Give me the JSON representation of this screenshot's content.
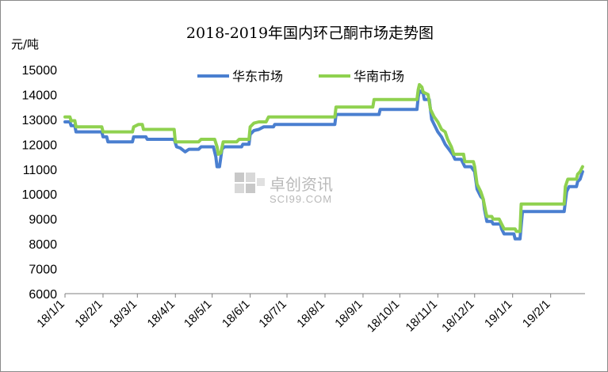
{
  "chart_data": {
    "type": "line",
    "title": "2018-2019年国内环己酮市场走势图",
    "ylabel": "元/吨",
    "xlabel": "",
    "ylim": [
      6000,
      15000
    ],
    "yticks": [
      "15000",
      "14000",
      "13000",
      "12000",
      "11000",
      "10000",
      "9000",
      "8000",
      "7000",
      "6000"
    ],
    "x_range": [
      "2018-01-01",
      "2019-03-01"
    ],
    "x_ticks": [
      "18/1/1",
      "18/2/1",
      "18/3/1",
      "18/4/1",
      "18/5/1",
      "18/6/1",
      "18/7/1",
      "18/8/1",
      "18/9/1",
      "18/10/1",
      "18/11/1",
      "18/12/1",
      "19/1/1",
      "19/2/1"
    ],
    "grid": false,
    "legend_position": "top-center",
    "watermark": "卓创资讯",
    "watermark_sub": "SCI99.COM",
    "series": [
      {
        "name": "华东市场",
        "color": "#4a7fd0",
        "points": [
          [
            "2018-01-01",
            12900
          ],
          [
            "2018-01-05",
            12900
          ],
          [
            "2018-01-06",
            12750
          ],
          [
            "2018-01-09",
            12750
          ],
          [
            "2018-01-10",
            12500
          ],
          [
            "2018-01-31",
            12500
          ],
          [
            "2018-02-01",
            12300
          ],
          [
            "2018-02-04",
            12300
          ],
          [
            "2018-02-05",
            12100
          ],
          [
            "2018-02-25",
            12100
          ],
          [
            "2018-02-26",
            12300
          ],
          [
            "2018-03-08",
            12300
          ],
          [
            "2018-03-09",
            12200
          ],
          [
            "2018-03-31",
            12200
          ],
          [
            "2018-04-02",
            11900
          ],
          [
            "2018-04-05",
            11850
          ],
          [
            "2018-04-09",
            11700
          ],
          [
            "2018-04-12",
            11800
          ],
          [
            "2018-04-20",
            11800
          ],
          [
            "2018-04-22",
            11900
          ],
          [
            "2018-05-02",
            11900
          ],
          [
            "2018-05-04",
            11500
          ],
          [
            "2018-05-05",
            11100
          ],
          [
            "2018-05-07",
            11100
          ],
          [
            "2018-05-09",
            11800
          ],
          [
            "2018-05-11",
            11900
          ],
          [
            "2018-05-25",
            11900
          ],
          [
            "2018-05-26",
            12000
          ],
          [
            "2018-05-31",
            12000
          ],
          [
            "2018-06-01",
            12400
          ],
          [
            "2018-06-04",
            12550
          ],
          [
            "2018-06-08",
            12600
          ],
          [
            "2018-06-12",
            12700
          ],
          [
            "2018-06-20",
            12700
          ],
          [
            "2018-06-21",
            12800
          ],
          [
            "2018-08-09",
            12800
          ],
          [
            "2018-08-10",
            13200
          ],
          [
            "2018-09-14",
            13200
          ],
          [
            "2018-09-15",
            13400
          ],
          [
            "2018-10-15",
            13400
          ],
          [
            "2018-10-16",
            13900
          ],
          [
            "2018-10-17",
            14150
          ],
          [
            "2018-10-20",
            14050
          ],
          [
            "2018-10-21",
            13800
          ],
          [
            "2018-10-25",
            13800
          ],
          [
            "2018-10-27",
            13000
          ],
          [
            "2018-10-29",
            12800
          ],
          [
            "2018-11-01",
            12500
          ],
          [
            "2018-11-04",
            12300
          ],
          [
            "2018-11-07",
            12000
          ],
          [
            "2018-11-10",
            11800
          ],
          [
            "2018-11-13",
            11600
          ],
          [
            "2018-11-15",
            11400
          ],
          [
            "2018-11-20",
            11400
          ],
          [
            "2018-11-21",
            11300
          ],
          [
            "2018-11-23",
            11100
          ],
          [
            "2018-11-28",
            11100
          ],
          [
            "2018-12-01",
            10900
          ],
          [
            "2018-12-03",
            10200
          ],
          [
            "2018-12-06",
            9900
          ],
          [
            "2018-12-08",
            9800
          ],
          [
            "2018-12-09",
            9400
          ],
          [
            "2018-12-11",
            8900
          ],
          [
            "2018-12-15",
            8900
          ],
          [
            "2018-12-16",
            8800
          ],
          [
            "2018-12-22",
            8800
          ],
          [
            "2018-12-23",
            8600
          ],
          [
            "2018-12-25",
            8400
          ],
          [
            "2019-01-02",
            8400
          ],
          [
            "2019-01-03",
            8200
          ],
          [
            "2019-01-07",
            8200
          ],
          [
            "2019-01-09",
            9300
          ],
          [
            "2019-02-12",
            9300
          ],
          [
            "2019-02-14",
            10100
          ],
          [
            "2019-02-16",
            10300
          ],
          [
            "2019-02-22",
            10300
          ],
          [
            "2019-02-23",
            10500
          ],
          [
            "2019-02-25",
            10600
          ],
          [
            "2019-02-27",
            10900
          ]
        ]
      },
      {
        "name": "华南市场",
        "color": "#8fd14f",
        "points": [
          [
            "2018-01-01",
            13100
          ],
          [
            "2018-01-05",
            13100
          ],
          [
            "2018-01-06",
            12950
          ],
          [
            "2018-01-09",
            12950
          ],
          [
            "2018-01-10",
            12700
          ],
          [
            "2018-01-31",
            12700
          ],
          [
            "2018-02-01",
            12500
          ],
          [
            "2018-02-25",
            12500
          ],
          [
            "2018-02-26",
            12700
          ],
          [
            "2018-03-02",
            12800
          ],
          [
            "2018-03-05",
            12800
          ],
          [
            "2018-03-06",
            12600
          ],
          [
            "2018-03-31",
            12600
          ],
          [
            "2018-04-01",
            12100
          ],
          [
            "2018-04-20",
            12100
          ],
          [
            "2018-04-22",
            12200
          ],
          [
            "2018-05-03",
            12200
          ],
          [
            "2018-05-05",
            11900
          ],
          [
            "2018-05-06",
            11600
          ],
          [
            "2018-05-08",
            11650
          ],
          [
            "2018-05-10",
            12100
          ],
          [
            "2018-05-21",
            12100
          ],
          [
            "2018-05-23",
            12200
          ],
          [
            "2018-05-31",
            12200
          ],
          [
            "2018-06-01",
            12700
          ],
          [
            "2018-06-04",
            12850
          ],
          [
            "2018-06-08",
            12900
          ],
          [
            "2018-06-14",
            12900
          ],
          [
            "2018-06-16",
            13100
          ],
          [
            "2018-08-09",
            13100
          ],
          [
            "2018-08-10",
            13500
          ],
          [
            "2018-09-09",
            13500
          ],
          [
            "2018-09-10",
            13800
          ],
          [
            "2018-10-15",
            13800
          ],
          [
            "2018-10-16",
            14200
          ],
          [
            "2018-10-17",
            14400
          ],
          [
            "2018-10-19",
            14300
          ],
          [
            "2018-10-20",
            14100
          ],
          [
            "2018-10-24",
            14000
          ],
          [
            "2018-10-26",
            13400
          ],
          [
            "2018-10-29",
            13100
          ],
          [
            "2018-11-01",
            12900
          ],
          [
            "2018-11-04",
            12600
          ],
          [
            "2018-11-07",
            12500
          ],
          [
            "2018-11-09",
            12200
          ],
          [
            "2018-11-12",
            11900
          ],
          [
            "2018-11-14",
            11600
          ],
          [
            "2018-11-22",
            11600
          ],
          [
            "2018-11-23",
            11300
          ],
          [
            "2018-11-30",
            11300
          ],
          [
            "2018-12-01",
            11100
          ],
          [
            "2018-12-03",
            10400
          ],
          [
            "2018-12-06",
            10100
          ],
          [
            "2018-12-08",
            9800
          ],
          [
            "2018-12-10",
            9300
          ],
          [
            "2018-12-11",
            9100
          ],
          [
            "2018-12-15",
            9100
          ],
          [
            "2018-12-16",
            9000
          ],
          [
            "2018-12-21",
            9000
          ],
          [
            "2018-12-23",
            8800
          ],
          [
            "2018-12-25",
            8600
          ],
          [
            "2019-01-03",
            8600
          ],
          [
            "2019-01-04",
            8500
          ],
          [
            "2019-01-07",
            8500
          ],
          [
            "2019-01-08",
            9600
          ],
          [
            "2019-02-12",
            9600
          ],
          [
            "2019-02-13",
            10300
          ],
          [
            "2019-02-15",
            10600
          ],
          [
            "2019-02-22",
            10600
          ],
          [
            "2019-02-23",
            10800
          ],
          [
            "2019-02-25",
            10900
          ],
          [
            "2019-02-27",
            11100
          ]
        ]
      }
    ]
  }
}
